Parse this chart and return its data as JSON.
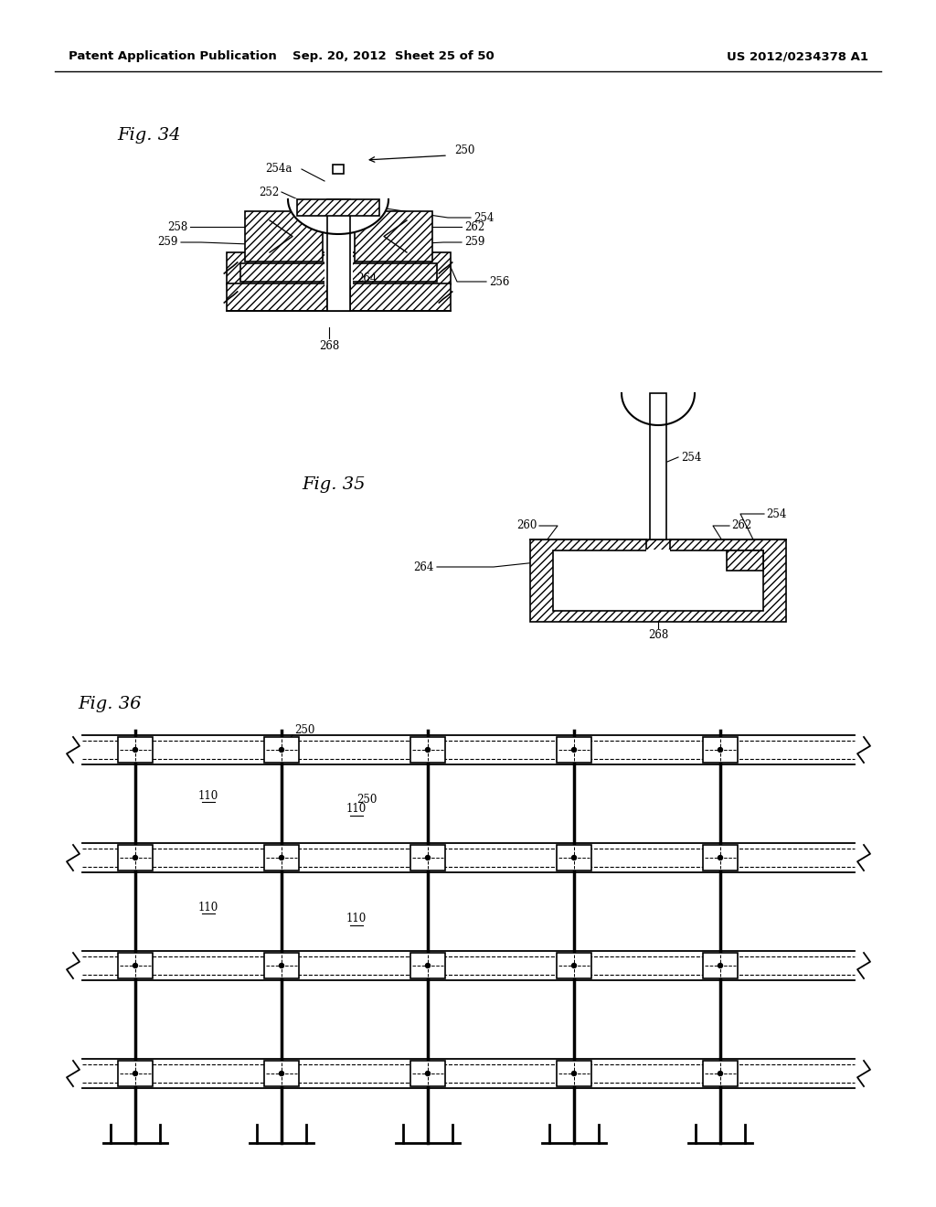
{
  "header_left": "Patent Application Publication",
  "header_mid": "Sep. 20, 2012  Sheet 25 of 50",
  "header_right": "US 2012/0234378 A1",
  "fig34_label": "Fig. 34",
  "fig35_label": "Fig. 35",
  "fig36_label": "Fig. 36",
  "bg_color": "#ffffff",
  "line_color": "#000000"
}
